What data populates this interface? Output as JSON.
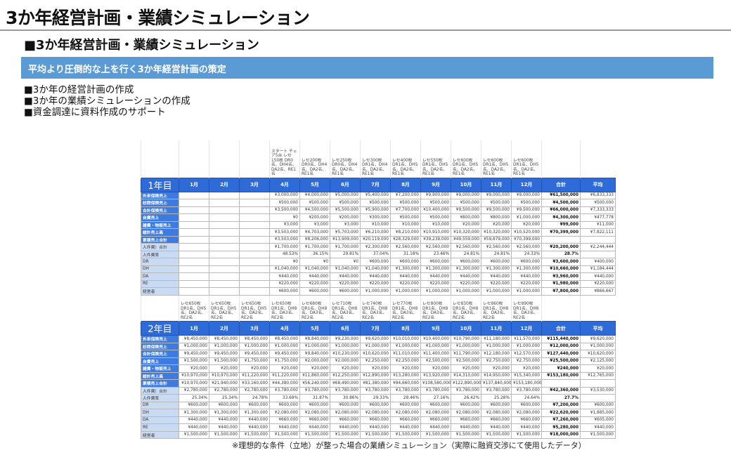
{
  "title": "3か年経営計画・業績シミュレーション",
  "subtitle": "■3か年経営計画・業績シミュレーション",
  "band": "平均より圧倒的な上を行く3か年経営計画の策定",
  "bullets": [
    "■3か年の経営計画の作成",
    "■3か年の業績シミュレーションの作成",
    "■資金調達に資料作成のサポート"
  ],
  "footnote": "※理想的な条件（立地）が整った場合の業績シミュレーション（実際に融資交渉にて使用したデータ）",
  "colors": {
    "header_blue": "#2e6bd8",
    "band_blue": "#5b9bd5",
    "label_light": "#c9daf3"
  },
  "years": [
    {
      "label": "1年目",
      "notes": [
        "",
        "",
        "",
        "スタート チェア5台 レセ150枚 DR0名、DH4名、DA2名、RE1名",
        "レセ200枚 DR0名、DH4名、DA2名、RE1名",
        "レセ250枚 DR0名、DH4名、DA2名、RE1名",
        "レセ300枚 DR1名、DH4名、DA2名、RE1名",
        "レセ400枚 DR1名、DH5名、DA2名、RE1名",
        "レセ550枚 DR1名、DH5名、DA2名、RE1名",
        "レセ600枚 DR1名、DH5名、DA2名、RE1名",
        "レセ600枚 DR1名、DH5名、DA2名、RE1名",
        "レセ600枚 DR1名、DH5名、DA2名、RE1名"
      ],
      "months": [
        "1月",
        "2月",
        "3月",
        "4月",
        "5月",
        "6月",
        "7月",
        "8月",
        "9月",
        "10月",
        "11月",
        "12月"
      ],
      "total_label": "合計",
      "avg_label": "平均",
      "rows": [
        {
          "label": "外来保険売上",
          "style": "dark",
          "values": [
            "",
            "",
            "",
            "¥3,000,000",
            "¥4,000,000",
            "¥5,000,000",
            "¥5,400,000",
            "¥7,200,000",
            "¥9,900,000",
            "¥9,000,000",
            "¥9,000,000",
            "¥9,000,000"
          ],
          "total": "¥61,500,000",
          "avg": "¥6,833,333"
        },
        {
          "label": "訪問保険売上",
          "style": "dark",
          "values": [
            "",
            "",
            "",
            "¥500,000",
            "¥500,000",
            "¥500,000",
            "¥500,000",
            "¥500,000",
            "¥500,000",
            "¥500,000",
            "¥500,000",
            "¥500,000"
          ],
          "total": "¥4,500,000",
          "avg": "¥500,000"
        },
        {
          "label": "合計保険売上",
          "style": "dark",
          "values": [
            "",
            "",
            "",
            "¥3,500,000",
            "¥4,500,000",
            "¥5,500,000",
            "¥5,900,000",
            "¥7,700,000",
            "¥10,400,000",
            "¥9,500,000",
            "¥9,500,000",
            "¥9,500,000"
          ],
          "total": "¥66,000,000",
          "avg": "¥7,333,333"
        },
        {
          "label": "自費売上",
          "style": "dark",
          "values": [
            "",
            "",
            "",
            "¥0",
            "¥200,000",
            "¥200,000",
            "¥300,000",
            "¥500,000",
            "¥500,000",
            "¥800,000",
            "¥800,000",
            "¥1,000,000"
          ],
          "total": "¥4,300,000",
          "avg": "¥477,778"
        },
        {
          "label": "雑費・物販売上",
          "style": "dark",
          "values": [
            "",
            "",
            "",
            "¥3,000",
            "¥3,000",
            "¥3,000",
            "¥10,000",
            "¥10,000",
            "¥10,000",
            "¥20,000",
            "¥20,000",
            "¥20,000"
          ],
          "total": "¥99,000",
          "avg": "¥11,000"
        },
        {
          "label": "総計売上高",
          "style": "dark",
          "values": [
            "",
            "",
            "",
            "¥3,503,000",
            "¥4,703,000",
            "¥5,703,000",
            "¥6,210,000",
            "¥8,210,000",
            "¥10,910,000",
            "¥10,320,000",
            "¥10,320,000",
            "¥10,520,000"
          ],
          "total": "¥70,399,000",
          "avg": "¥7,822,111"
        },
        {
          "label": "累積売上合計",
          "style": "dark",
          "values": [
            "",
            "",
            "",
            "¥3,503,000",
            "¥8,206,000",
            "¥13,909,000",
            "¥20,119,000",
            "¥28,329,000",
            "¥39,239,000",
            "¥49,559,000",
            "¥59,879,000",
            "¥70,399,000"
          ],
          "total": "",
          "avg": ""
        },
        {
          "label": "人件費）合計",
          "style": "light",
          "values": [
            "",
            "",
            "",
            "¥1,700,000",
            "¥1,700,000",
            "¥1,700,000",
            "¥2,300,000",
            "¥2,560,000",
            "¥2,560,000",
            "¥2,560,000",
            "¥2,560,000",
            "¥2,560,000"
          ],
          "total": "¥20,200,000",
          "avg": "¥2,244,444"
        },
        {
          "label": "人件費率",
          "style": "light",
          "values": [
            "",
            "",
            "",
            "48.53%",
            "36.15%",
            "29.81%",
            "37.04%",
            "31.18%",
            "23.46%",
            "24.81%",
            "24.81%",
            "24.33%"
          ],
          "total": "28.7%",
          "avg": ""
        },
        {
          "label": "DR",
          "style": "light",
          "values": [
            "",
            "",
            "",
            "¥0",
            "¥0",
            "¥0",
            "¥600,000",
            "¥600,000",
            "¥600,000",
            "¥600,000",
            "¥600,000",
            "¥600,000"
          ],
          "total": "¥3,600,000",
          "avg": "¥400,000"
        },
        {
          "label": "DH",
          "style": "light",
          "values": [
            "",
            "",
            "",
            "¥1,040,000",
            "¥1,040,000",
            "¥1,040,000",
            "¥1,040,000",
            "¥1,300,000",
            "¥1,300,000",
            "¥1,300,000",
            "¥1,300,000",
            "¥1,300,000"
          ],
          "total": "¥10,660,000",
          "avg": "¥1,184,444"
        },
        {
          "label": "DA",
          "style": "light",
          "values": [
            "",
            "",
            "",
            "¥440,000",
            "¥440,000",
            "¥440,000",
            "¥440,000",
            "¥440,000",
            "¥440,000",
            "¥440,000",
            "¥440,000",
            "¥440,000"
          ],
          "total": "¥3,960,000",
          "avg": "¥440,000"
        },
        {
          "label": "RE",
          "style": "light",
          "values": [
            "",
            "",
            "",
            "¥220,000",
            "¥220,000",
            "¥220,000",
            "¥220,000",
            "¥220,000",
            "¥220,000",
            "¥220,000",
            "¥220,000",
            "¥220,000"
          ],
          "total": "¥1,980,000",
          "avg": "¥220,000"
        },
        {
          "label": "経営者",
          "style": "light",
          "values": [
            "",
            "",
            "",
            "¥600,000",
            "¥600,000",
            "¥600,000",
            "¥1,000,000",
            "¥1,000,000",
            "¥1,000,000",
            "¥1,000,000",
            "¥1,000,000",
            "¥1,000,000"
          ],
          "total": "¥7,800,000",
          "avg": "¥866,667"
        }
      ]
    },
    {
      "label": "2年目",
      "notes": [
        "レセ650枚 DR1名、DH5名、DA2名、RE2名",
        "レセ650枚 DR1名、DH5名、DA2名、RE2名",
        "レセ650枚 DR1名、DH5名、DA2名、RE2名",
        "レセ650枚 DR1名、DH8名、DA3名、RE2名",
        "レセ680枚 DR1名、DH8名、DA3名、RE2名",
        "レセ710枚 DR1名、DH8名、DA3名、RE2名",
        "レセ740枚 DR1名、DH8名、DA3名、RE2名",
        "レセ770枚 DR1名、DH8名、DA3名、RE2名",
        "レセ800枚 DR1名、DH8名、DA3名、RE2名",
        "レセ830枚 DR1名、DH8名、DA3名、RE2名",
        "レセ860枚 DR1名、DH8名、DA3名、RE2名",
        "レセ890枚 DR1名、DH8名、DA3名、RE2名"
      ],
      "months": [
        "1月",
        "2月",
        "3月",
        "4月",
        "5月",
        "6月",
        "7月",
        "8月",
        "9月",
        "10月",
        "11月",
        "12月"
      ],
      "total_label": "合計",
      "avg_label": "平均",
      "rows": [
        {
          "label": "外来保険売上",
          "style": "dark",
          "values": [
            "¥8,450,000",
            "¥8,450,000",
            "¥8,450,000",
            "¥8,450,000",
            "¥8,840,000",
            "¥9,230,000",
            "¥9,620,000",
            "¥10,010,000",
            "¥10,400,000",
            "¥10,790,000",
            "¥11,180,000",
            "¥11,570,000"
          ],
          "total": "¥115,440,000",
          "avg": "¥9,620,000"
        },
        {
          "label": "訪問保険売上",
          "style": "dark",
          "values": [
            "¥1,000,000",
            "¥1,000,000",
            "¥1,000,000",
            "¥1,000,000",
            "¥1,000,000",
            "¥1,000,000",
            "¥1,000,000",
            "¥1,000,000",
            "¥1,000,000",
            "¥1,000,000",
            "¥1,000,000",
            "¥1,000,000"
          ],
          "total": "¥12,000,000",
          "avg": "¥1,000,000"
        },
        {
          "label": "合計保険売上",
          "style": "dark",
          "values": [
            "¥9,450,000",
            "¥9,450,000",
            "¥9,450,000",
            "¥9,450,000",
            "¥9,840,000",
            "¥10,230,000",
            "¥10,620,000",
            "¥11,010,000",
            "¥11,400,000",
            "¥11,790,000",
            "¥12,180,000",
            "¥12,570,000"
          ],
          "total": "¥127,440,000",
          "avg": "¥10,620,000"
        },
        {
          "label": "自費売上",
          "style": "dark",
          "values": [
            "¥1,500,000",
            "¥1,500,000",
            "¥1,750,000",
            "¥1,750,000",
            "¥2,000,000",
            "¥2,000,000",
            "¥2,250,000",
            "¥2,250,000",
            "¥2,500,000",
            "¥2,500,000",
            "¥2,750,000",
            "¥2,750,000"
          ],
          "total": "¥25,500,000",
          "avg": "¥2,125,000"
        },
        {
          "label": "雑費・物販売上",
          "style": "dark",
          "values": [
            "¥20,000",
            "¥20,000",
            "¥20,000",
            "¥20,000",
            "¥20,000",
            "¥20,000",
            "¥20,000",
            "¥20,000",
            "¥20,000",
            "¥20,000",
            "¥20,000",
            "¥20,000"
          ],
          "total": "¥240,000",
          "avg": "¥20,000"
        },
        {
          "label": "総計売上高",
          "style": "dark",
          "values": [
            "¥10,970,000",
            "¥10,970,000",
            "¥11,220,000",
            "¥11,220,000",
            "¥11,860,000",
            "¥12,250,000",
            "¥12,890,000",
            "¥13,280,000",
            "¥13,920,000",
            "¥14,310,000",
            "¥14,950,000",
            "¥15,340,000"
          ],
          "total": "¥153,180,000",
          "avg": "¥12,765,000"
        },
        {
          "label": "累積売上合計",
          "style": "dark",
          "values": [
            "¥10,970,000",
            "¥21,940,000",
            "¥33,160,000",
            "¥44,380,000",
            "¥56,240,000",
            "¥68,490,000",
            "¥81,380,000",
            "¥94,660,000",
            "¥108,580,000",
            "¥122,890,000",
            "¥137,840,000",
            "¥153,180,000"
          ],
          "total": "",
          "avg": ""
        },
        {
          "label": "人件費）合計",
          "style": "light",
          "values": [
            "¥2,780,000",
            "¥2,780,000",
            "¥2,780,000",
            "¥3,780,000",
            "¥3,780,000",
            "¥3,780,000",
            "¥3,780,000",
            "¥3,780,000",
            "¥3,780,000",
            "¥3,780,000",
            "¥3,780,000",
            "¥3,780,000"
          ],
          "total": "¥42,360,000",
          "avg": "¥3,530,000"
        },
        {
          "label": "人件費率",
          "style": "light",
          "values": [
            "25.34%",
            "25.34%",
            "24.78%",
            "33.69%",
            "31.87%",
            "30.86%",
            "29.33%",
            "28.46%",
            "27.16%",
            "26.42%",
            "25.28%",
            "24.64%"
          ],
          "total": "27.7%",
          "avg": ""
        },
        {
          "label": "DR",
          "style": "light",
          "values": [
            "¥600,000",
            "¥600,000",
            "¥600,000",
            "¥600,000",
            "¥600,000",
            "¥600,000",
            "¥600,000",
            "¥600,000",
            "¥600,000",
            "¥600,000",
            "¥600,000",
            "¥600,000"
          ],
          "total": "¥7,200,000",
          "avg": "¥600,000"
        },
        {
          "label": "DH",
          "style": "light",
          "values": [
            "¥1,300,000",
            "¥1,300,000",
            "¥1,300,000",
            "¥2,080,000",
            "¥2,080,000",
            "¥2,080,000",
            "¥2,080,000",
            "¥2,080,000",
            "¥2,080,000",
            "¥2,080,000",
            "¥2,080,000",
            "¥2,080,000"
          ],
          "total": "¥22,620,000",
          "avg": "¥1,885,000"
        },
        {
          "label": "DA",
          "style": "light",
          "values": [
            "¥440,000",
            "¥440,000",
            "¥440,000",
            "¥660,000",
            "¥660,000",
            "¥660,000",
            "¥660,000",
            "¥660,000",
            "¥660,000",
            "¥660,000",
            "¥660,000",
            "¥660,000"
          ],
          "total": "¥7,260,000",
          "avg": "¥605,000"
        },
        {
          "label": "RE",
          "style": "light",
          "values": [
            "¥440,000",
            "¥440,000",
            "¥440,000",
            "¥440,000",
            "¥440,000",
            "¥440,000",
            "¥440,000",
            "¥440,000",
            "¥440,000",
            "¥440,000",
            "¥440,000",
            "¥440,000"
          ],
          "total": "¥5,280,000",
          "avg": "¥440,000"
        },
        {
          "label": "経営者",
          "style": "light",
          "values": [
            "¥1,500,000",
            "¥1,500,000",
            "¥1,500,000",
            "¥1,500,000",
            "¥1,500,000",
            "¥1,500,000",
            "¥1,500,000",
            "¥1,500,000",
            "¥1,500,000",
            "¥1,500,000",
            "¥1,500,000",
            "¥1,500,000"
          ],
          "total": "¥18,000,000",
          "avg": "¥1,500,000"
        }
      ]
    }
  ]
}
